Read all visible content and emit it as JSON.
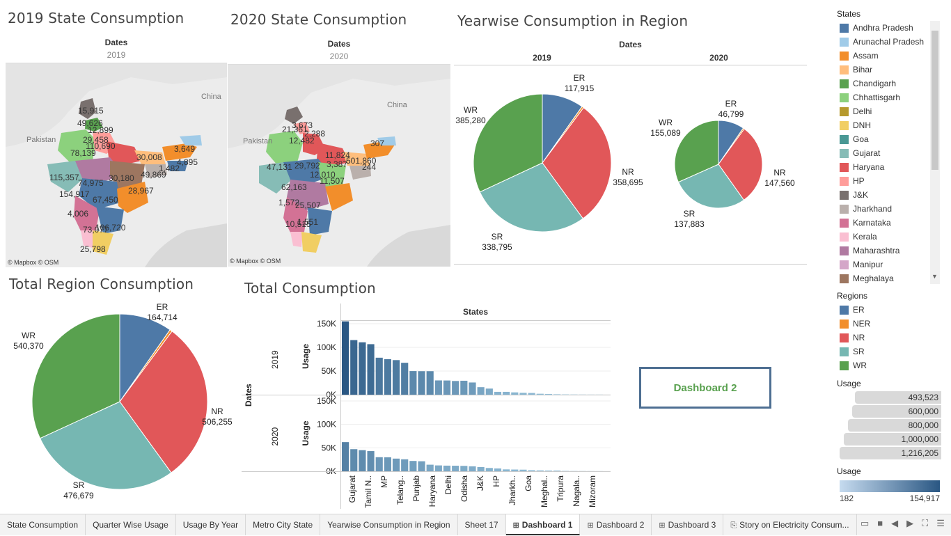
{
  "titles": {
    "state2019": "2019 State Consumption",
    "state2020": "2020 State Consumption",
    "yearwise": "Yearwise Consumption in Region",
    "total_region": "Total Region Consumption",
    "total": "Total Consumption"
  },
  "maps": {
    "dates_label": "Dates",
    "year2019": "2019",
    "year2020": "2020",
    "credit": "© Mapbox © OSM",
    "pakistan": "Pakistan",
    "china": "China",
    "labels2019": [
      "15,915",
      "49,626",
      "12,899",
      "29,458",
      "78,139",
      "110,690",
      "30,008",
      "3,649",
      "1,482",
      "4,895",
      "115,357",
      "74,975",
      "30,180",
      "49,869",
      "154,917",
      "28,967",
      "67,450",
      "4,006",
      "73,077",
      "106,720",
      "25,798"
    ],
    "labels2020": [
      "3,673",
      "21,361",
      "2,288",
      "12,482",
      "307",
      "11,824",
      "47,131",
      "29,792",
      "3,387",
      "501,860",
      "244",
      "12,010",
      "11,507",
      "62,163",
      "1,572",
      "25,507",
      "10,515",
      "1,551"
    ]
  },
  "yearwise": {
    "dates_label": "Dates",
    "year2019": "2019",
    "year2020": "2020"
  },
  "states_legend": {
    "title": "States",
    "items": [
      {
        "name": "Andhra Pradesh",
        "color": "#4e79a7"
      },
      {
        "name": "Arunachal Pradesh",
        "color": "#a0cbe8"
      },
      {
        "name": "Assam",
        "color": "#f28e2b"
      },
      {
        "name": "Bihar",
        "color": "#ffbe7d"
      },
      {
        "name": "Chandigarh",
        "color": "#59a14f"
      },
      {
        "name": "Chhattisgarh",
        "color": "#8cd17d"
      },
      {
        "name": "Delhi",
        "color": "#b6992d"
      },
      {
        "name": "DNH",
        "color": "#f1ce63"
      },
      {
        "name": "Goa",
        "color": "#499894"
      },
      {
        "name": "Gujarat",
        "color": "#86bcb6"
      },
      {
        "name": "Haryana",
        "color": "#e15759"
      },
      {
        "name": "HP",
        "color": "#ff9d9a"
      },
      {
        "name": "J&K",
        "color": "#79706e"
      },
      {
        "name": "Jharkhand",
        "color": "#bab0ac"
      },
      {
        "name": "Karnataka",
        "color": "#d37295"
      },
      {
        "name": "Kerala",
        "color": "#fabfd2"
      },
      {
        "name": "Maharashtra",
        "color": "#b07aa1"
      },
      {
        "name": "Manipur",
        "color": "#d4a6c8"
      },
      {
        "name": "Meghalaya",
        "color": "#9d7660"
      }
    ]
  },
  "regions_legend": {
    "title": "Regions",
    "items": [
      {
        "name": "ER",
        "color": "#4e79a7"
      },
      {
        "name": "NER",
        "color": "#f28e2b"
      },
      {
        "name": "NR",
        "color": "#e15759"
      },
      {
        "name": "SR",
        "color": "#76b7b2"
      },
      {
        "name": "WR",
        "color": "#59a14f"
      }
    ]
  },
  "usage_size_legend": {
    "title": "Usage",
    "values": [
      "493,523",
      "600,000",
      "800,000",
      "1,000,000",
      "1,216,205"
    ]
  },
  "usage_color_legend": {
    "title": "Usage",
    "min": "182",
    "max": "154,917",
    "color_low": "#c6dbef",
    "color_high": "#2a5783"
  },
  "dashboard_button": "Dashboard 2",
  "tabs": [
    {
      "label": "State Consumption",
      "icon": ""
    },
    {
      "label": "Quarter Wise Usage",
      "icon": ""
    },
    {
      "label": "Usage By Year",
      "icon": ""
    },
    {
      "label": "Metro City State",
      "icon": ""
    },
    {
      "label": "Yearwise Consumption in Region",
      "icon": ""
    },
    {
      "label": "Sheet 17",
      "icon": ""
    },
    {
      "label": "Dashboard 1",
      "icon": "grid-icon",
      "active": true
    },
    {
      "label": "Dashboard 2",
      "icon": "grid-icon"
    },
    {
      "label": "Dashboard 3",
      "icon": "grid-icon"
    },
    {
      "label": "Story on Electricity Consum...",
      "icon": "story-icon"
    }
  ],
  "bar_chart_text": {
    "states_label": "States",
    "dates_label": "Dates",
    "usage_label": "Usage",
    "row2019": "2019",
    "row2020": "2020",
    "y_ticks": [
      "150K",
      "100K",
      "50K",
      "0K"
    ],
    "x_labels": [
      "Gujarat",
      "Tamil N..",
      "MP",
      "Telang..",
      "Punjab",
      "Haryana",
      "Delhi",
      "Odisha",
      "J&K",
      "HP",
      "Jharkh..",
      "Goa",
      "Meghal..",
      "Tripura",
      "Nagala..",
      "Mizoram"
    ]
  },
  "chart_data": [
    {
      "type": "pie",
      "title": "Yearwise Consumption in Region",
      "facet": "2019",
      "categories": [
        "ER",
        "NER",
        "NR",
        "SR",
        "WR"
      ],
      "values": [
        117915,
        5350,
        358695,
        338795,
        385280
      ],
      "labels": [
        "117,915",
        "",
        "358,695",
        "338,795",
        "385,280"
      ]
    },
    {
      "type": "pie",
      "title": "Yearwise Consumption in Region",
      "facet": "2020",
      "categories": [
        "ER",
        "NER",
        "NR",
        "SR",
        "WR"
      ],
      "values": [
        46799,
        2400,
        147560,
        137883,
        155089
      ],
      "labels": [
        "46,799",
        "",
        "147,560",
        "137,883",
        "155,089"
      ]
    },
    {
      "type": "pie",
      "title": "Total Region Consumption",
      "categories": [
        "ER",
        "NER",
        "NR",
        "SR",
        "WR"
      ],
      "values": [
        164714,
        7750,
        506255,
        476679,
        540370
      ],
      "labels": [
        "164,714",
        "",
        "506,255",
        "476,679",
        "540,370"
      ]
    },
    {
      "type": "bar",
      "title": "Total Consumption",
      "xlabel": "States",
      "ylabel": "Usage",
      "ylim": [
        0,
        150000
      ],
      "series": [
        {
          "name": "2019",
          "values": [
            154917,
            115357,
            110690,
            106720,
            78139,
            74975,
            73077,
            67450,
            49869,
            49626,
            49626,
            30180,
            30008,
            28967,
            29458,
            25798,
            15915,
            12899,
            6000,
            6000,
            4895,
            4006,
            3649,
            2000,
            1482,
            900,
            600,
            400,
            300,
            200,
            182
          ]
        },
        {
          "name": "2020",
          "values": [
            62163,
            47131,
            45000,
            43000,
            30000,
            29792,
            27000,
            25507,
            22000,
            21361,
            14000,
            12482,
            12010,
            11824,
            11507,
            10515,
            9000,
            7000,
            6000,
            4000,
            3673,
            3387,
            2288,
            1860,
            1572,
            1551,
            700,
            400,
            307,
            244,
            182
          ]
        }
      ]
    }
  ]
}
